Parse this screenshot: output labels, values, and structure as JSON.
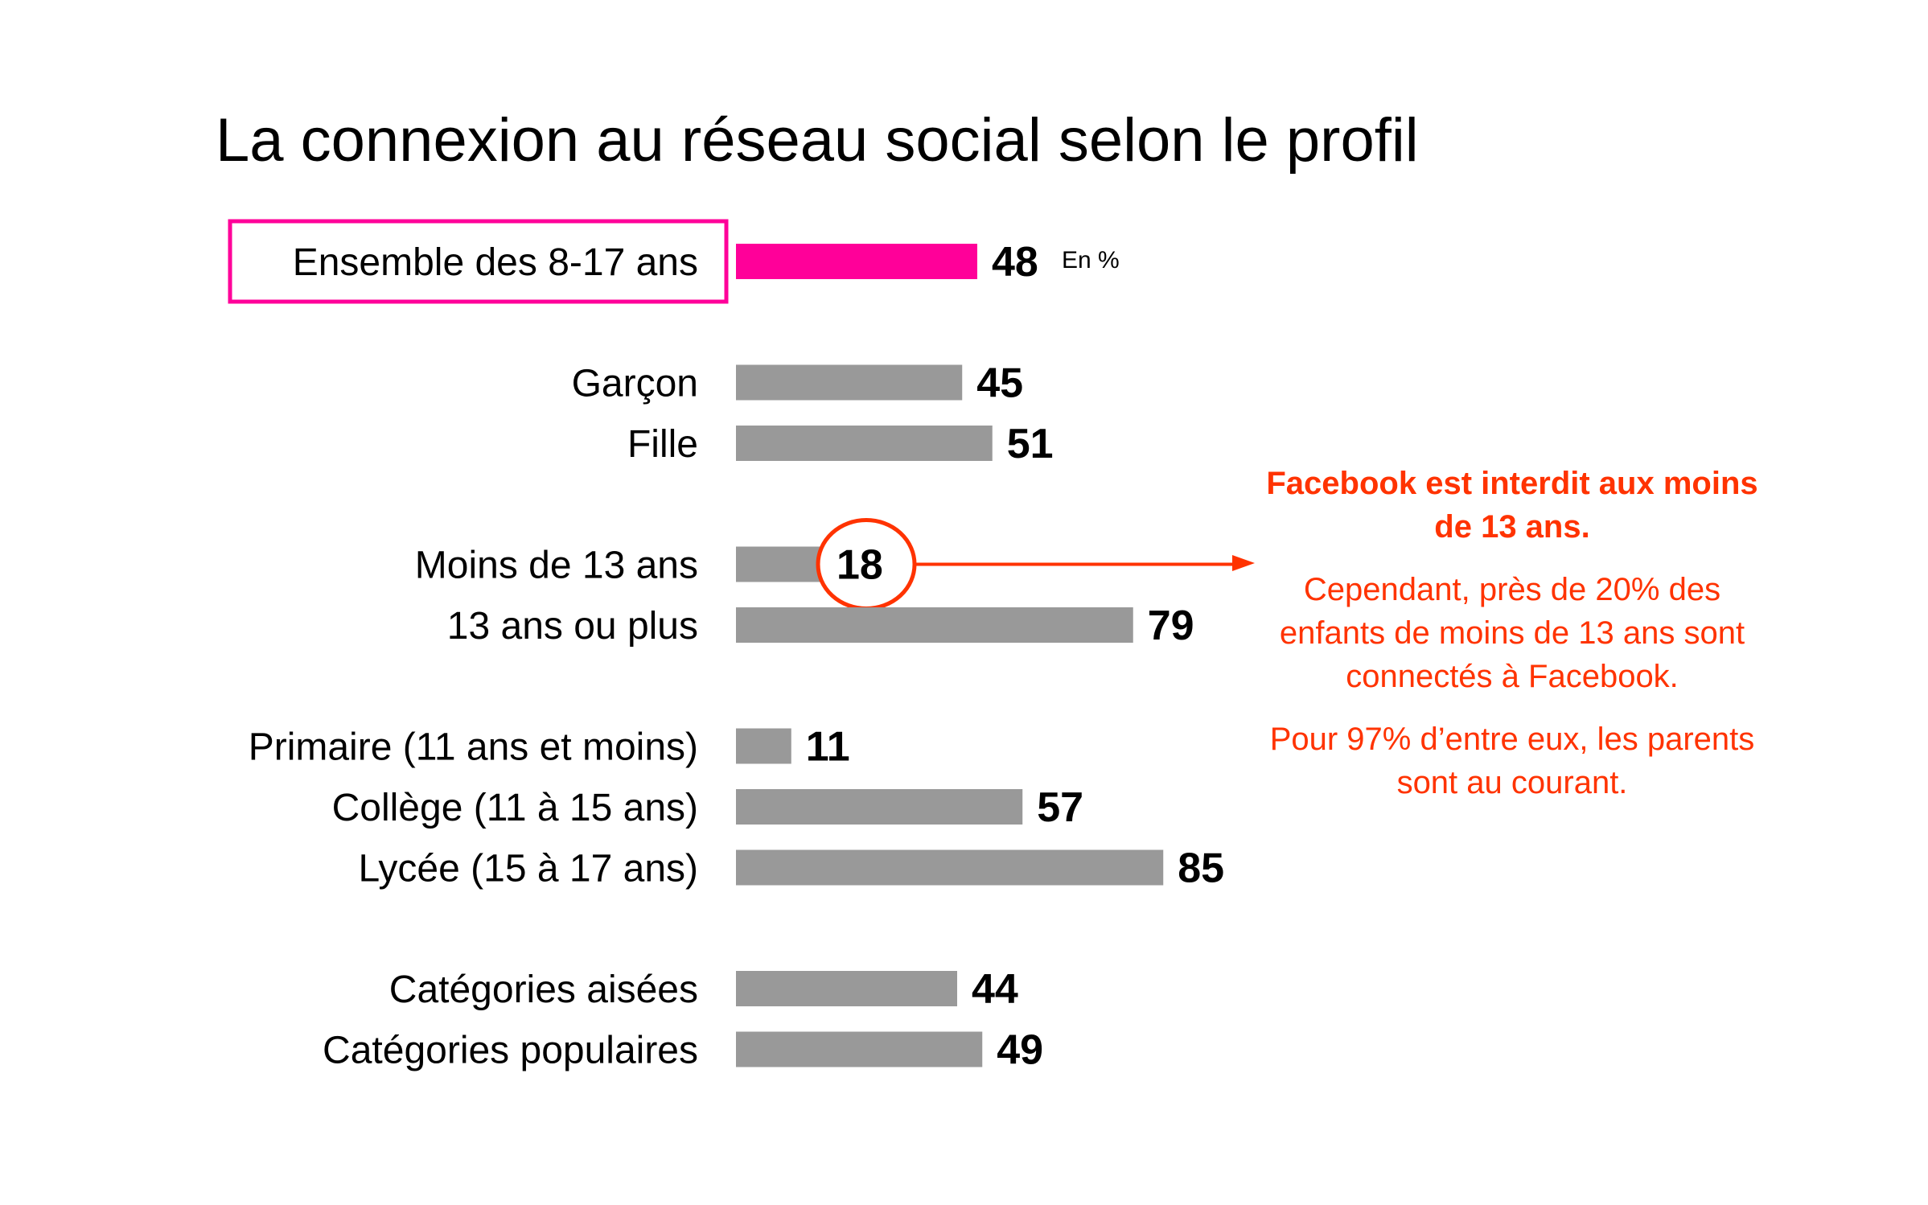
{
  "chart_data": {
    "type": "bar",
    "orientation": "horizontal",
    "title": "La connexion au réseau social selon le profil",
    "unit_label": "En %",
    "xlim": [
      0,
      100
    ],
    "grid": false,
    "legend": "none",
    "colors": {
      "highlight": "#ff0099",
      "default": "#999999",
      "annotation": "#ff3300"
    },
    "groups": [
      [
        {
          "label": "Ensemble des 8-17 ans",
          "value": 48,
          "highlight": true
        }
      ],
      [
        {
          "label": "Garçon",
          "value": 45
        },
        {
          "label": "Fille",
          "value": 51
        }
      ],
      [
        {
          "label": "Moins de 13 ans",
          "value": 18,
          "circled": true
        },
        {
          "label": "13 ans ou plus",
          "value": 79
        }
      ],
      [
        {
          "label": "Primaire (11 ans et moins)",
          "value": 11
        },
        {
          "label": "Collège (11 à 15 ans)",
          "value": 57
        },
        {
          "label": "Lycée (15 à 17 ans)",
          "value": 85
        }
      ],
      [
        {
          "label": "Catégories aisées",
          "value": 44
        },
        {
          "label": "Catégories populaires",
          "value": 49
        }
      ]
    ]
  },
  "annotation": {
    "heading": "Facebook est interdit aux moins de 13 ans.",
    "paragraph1": "Cependant, près de 20% des enfants de moins de 13 ans sont connectés à Facebook.",
    "paragraph2": "Pour 97% d’entre eux, les parents sont au courant."
  }
}
